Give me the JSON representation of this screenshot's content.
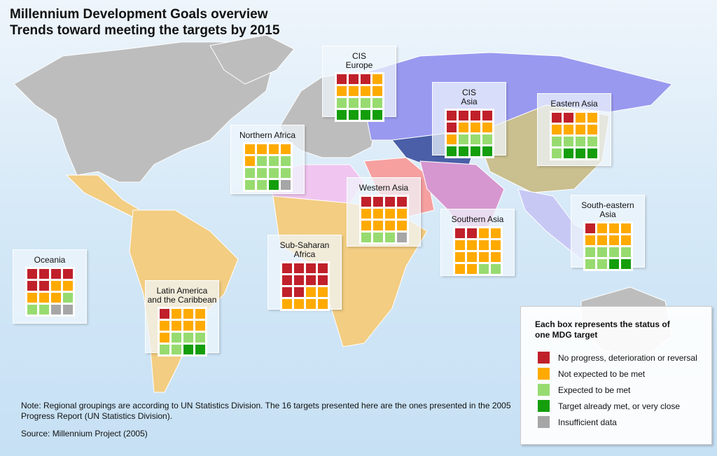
{
  "title": {
    "line1": "Millennium Development Goals overview",
    "line2": "Trends toward meeting the targets by 2015"
  },
  "colors": {
    "R": "#c0202a",
    "O": "#ffaa00",
    "L": "#97db70",
    "G": "#149e0c",
    "X": "#a6a6a6"
  },
  "regions": [
    {
      "id": "cis-europe",
      "label": "CIS\nEurope",
      "cells": [
        "R",
        "R",
        "R",
        "O",
        "O",
        "O",
        "O",
        "O",
        "L",
        "L",
        "L",
        "L",
        "G",
        "G",
        "G",
        "G"
      ]
    },
    {
      "id": "cis-asia",
      "label": "CIS\nAsia",
      "cells": [
        "R",
        "R",
        "R",
        "R",
        "R",
        "O",
        "O",
        "O",
        "O",
        "L",
        "L",
        "L",
        "G",
        "G",
        "G",
        "G"
      ]
    },
    {
      "id": "northern-africa",
      "label": "Northern Africa",
      "cells": [
        "O",
        "O",
        "O",
        "O",
        "O",
        "L",
        "L",
        "L",
        "L",
        "L",
        "L",
        "L",
        "L",
        "L",
        "G",
        "X"
      ]
    },
    {
      "id": "western-asia",
      "label": "Western Asia",
      "cells": [
        "R",
        "R",
        "R",
        "R",
        "O",
        "O",
        "O",
        "O",
        "O",
        "O",
        "O",
        "O",
        "L",
        "L",
        "L",
        "X"
      ]
    },
    {
      "id": "eastern-asia",
      "label": "Eastern Asia",
      "cells": [
        "R",
        "R",
        "O",
        "O",
        "O",
        "O",
        "O",
        "O",
        "L",
        "L",
        "L",
        "L",
        "L",
        "G",
        "G",
        "G"
      ]
    },
    {
      "id": "south-eastern-asia",
      "label": "South-eastern\nAsia",
      "cells": [
        "R",
        "O",
        "O",
        "O",
        "O",
        "O",
        "O",
        "O",
        "L",
        "L",
        "L",
        "L",
        "L",
        "L",
        "G",
        "G"
      ]
    },
    {
      "id": "southern-asia",
      "label": "Southern Asia",
      "cells": [
        "R",
        "R",
        "O",
        "O",
        "O",
        "O",
        "O",
        "O",
        "O",
        "O",
        "O",
        "O",
        "O",
        "O",
        "L",
        "L"
      ]
    },
    {
      "id": "sub-saharan-africa",
      "label": "Sub-Saharan Africa",
      "cells": [
        "R",
        "R",
        "R",
        "R",
        "R",
        "R",
        "R",
        "R",
        "R",
        "R",
        "O",
        "O",
        "O",
        "O",
        "O",
        "O"
      ]
    },
    {
      "id": "oceania",
      "label": "Oceania",
      "cells": [
        "R",
        "R",
        "R",
        "R",
        "R",
        "R",
        "O",
        "O",
        "O",
        "O",
        "O",
        "L",
        "L",
        "L",
        "X",
        "X"
      ]
    },
    {
      "id": "latin-america",
      "label": "Latin America\nand the Caribbean",
      "cells": [
        "R",
        "O",
        "O",
        "O",
        "O",
        "O",
        "O",
        "O",
        "O",
        "L",
        "L",
        "L",
        "L",
        "L",
        "G",
        "G"
      ]
    }
  ],
  "legend": {
    "heading_line1": "Each box represents the status of",
    "heading_line2": "one MDG target",
    "items": [
      {
        "key": "R",
        "label": "No progress, deterioration or reversal"
      },
      {
        "key": "O",
        "label": "Not expected to be met"
      },
      {
        "key": "L",
        "label": "Expected to be met"
      },
      {
        "key": "G",
        "label": "Target already met, or very close"
      },
      {
        "key": "X",
        "label": "Insufficient data"
      }
    ]
  },
  "note": "Note: Regional groupings are according to UN Statistics Division. The 16 targets presented here are the ones presented in the 2005 Progress Report (UN Statistics Division).",
  "source": "Source: Millennium Project (2005)"
}
